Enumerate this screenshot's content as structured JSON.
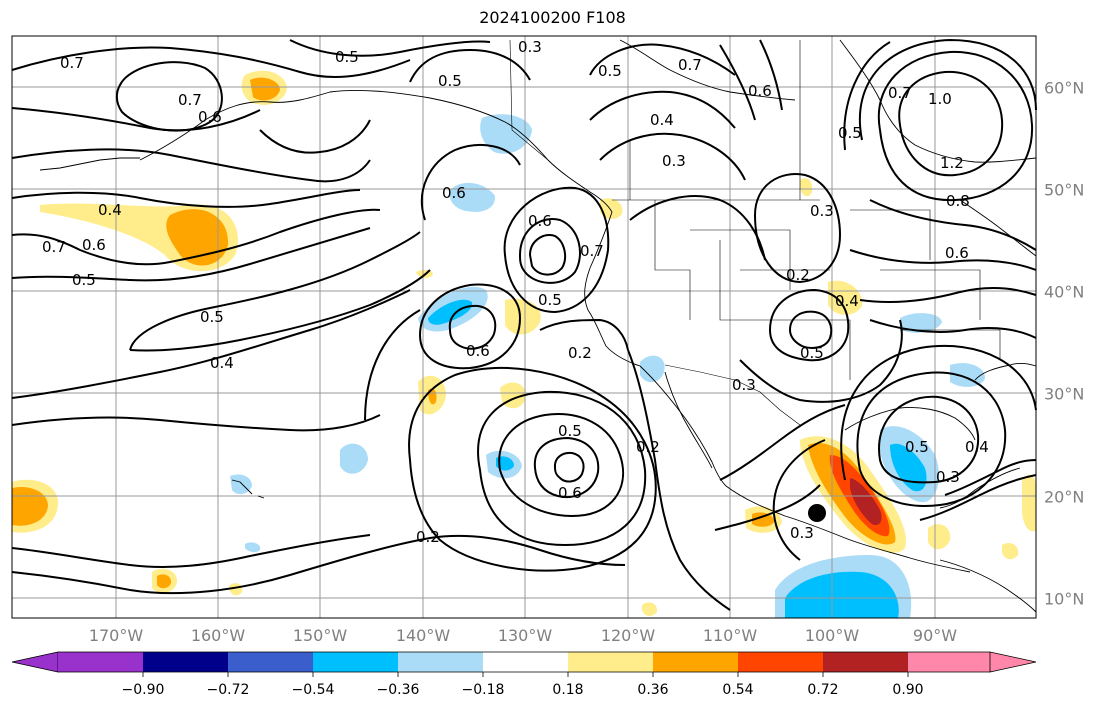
{
  "title": "2024100200 F108",
  "longitude_labels": [
    "170°W",
    "160°W",
    "150°W",
    "140°W",
    "130°W",
    "120°W",
    "110°W",
    "100°W",
    "90°W"
  ],
  "latitude_labels": [
    "60°N",
    "50°N",
    "40°N",
    "30°N",
    "20°N",
    "10°N"
  ],
  "colorbar": {
    "tick_labels": [
      "−0.90",
      "−0.72",
      "−0.54",
      "−0.36",
      "−0.18",
      "0.18",
      "0.36",
      "0.54",
      "0.72",
      "0.90"
    ],
    "colors": [
      "#9932cc",
      "#00008b",
      "#3a5fcd",
      "#00bfff",
      "#aadcf7",
      "#ffffff",
      "#ffec8b",
      "#ffa500",
      "#ff4500",
      "#b22222",
      "#ff88aa"
    ]
  },
  "contour_labels": [
    {
      "text": "0.7"
    },
    {
      "text": "0.5"
    },
    {
      "text": "0.3"
    },
    {
      "text": "0.5"
    },
    {
      "text": "0.5"
    },
    {
      "text": "0.7"
    },
    {
      "text": "0.6"
    },
    {
      "text": "0.7"
    },
    {
      "text": "0.6"
    },
    {
      "text": "0.4"
    },
    {
      "text": "0.3"
    },
    {
      "text": "0.5"
    },
    {
      "text": "0.7"
    },
    {
      "text": "1.0"
    },
    {
      "text": "1.2"
    },
    {
      "text": "0.6"
    },
    {
      "text": "0.4"
    },
    {
      "text": "0.7"
    },
    {
      "text": "0.6"
    },
    {
      "text": "0.5"
    },
    {
      "text": "0.6"
    },
    {
      "text": "0.7"
    },
    {
      "text": "0.5"
    },
    {
      "text": "0.3"
    },
    {
      "text": "0.8"
    },
    {
      "text": "0.6"
    },
    {
      "text": "0.2"
    },
    {
      "text": "0.4"
    },
    {
      "text": "0.5"
    },
    {
      "text": "0.4"
    },
    {
      "text": "0.6"
    },
    {
      "text": "0.2"
    },
    {
      "text": "0.5"
    },
    {
      "text": "0.3"
    },
    {
      "text": "0.5"
    },
    {
      "text": "0.6"
    },
    {
      "text": "0.2"
    },
    {
      "text": "0.5"
    },
    {
      "text": "0.4"
    },
    {
      "text": "0.3"
    },
    {
      "text": "0.2"
    },
    {
      "text": "0.3"
    }
  ]
}
